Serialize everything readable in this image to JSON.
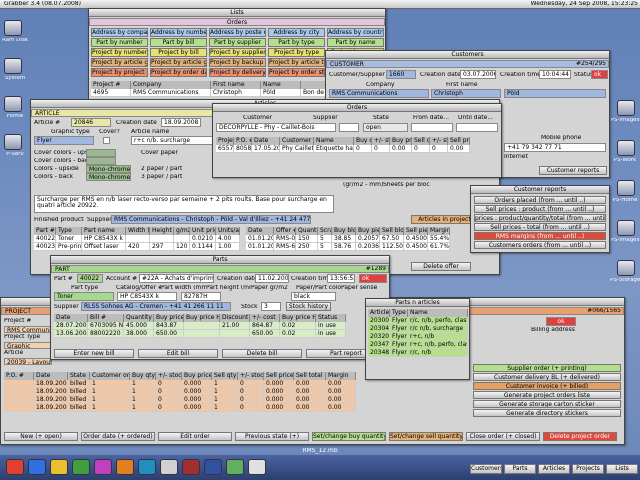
{
  "menubar": {
    "app": "Grabber 3.4 (08.07.2008)",
    "clock": "Wednesday, 24 Sep 2008, 15:23:25"
  },
  "desktop_icons_left": [
    "Ram Disk",
    "System",
    "Home",
    "P-Serv"
  ],
  "desktop_icons_right": [
    "PS-Images",
    "PS-Work",
    "PS-Home",
    "PS-Images",
    "PS-Storage"
  ],
  "lists": {
    "title": "Lists",
    "section": "Orders",
    "buttons": [
      [
        "Address by companyname",
        "Address by number",
        "Address by poste code",
        "Address by city",
        "Address by country"
      ],
      [
        "Part by number",
        "Part by bill",
        "Part by supplier",
        "Part by type",
        "Part by name"
      ],
      [
        "Project by number",
        "Project by bill",
        "Project by supplier",
        "Project by type",
        "Project by name"
      ],
      [
        "Project by article graphic type",
        "Project by article graphic stock",
        "Project by backup media",
        "Project by article type",
        "Project by article name"
      ],
      [
        "Project by project name",
        "Project by order date",
        "Project by delivery date",
        "Project by order state",
        "Project by invoice"
      ]
    ],
    "header": [
      "Project #",
      "Company",
      "First name",
      "Name",
      ""
    ],
    "rows": [
      [
        "4695",
        "RMS Communications",
        "Christoph",
        "Pöld",
        "Bon de rabais CHF 100.00"
      ]
    ]
  },
  "customers": {
    "title": "Customers",
    "section": "CUSTOMER",
    "record": "#254/295",
    "id_label": "Customer/Supplier #",
    "id": "1660",
    "cdate_label": "Creation date",
    "cdate": "03.07.2006",
    "ctime_label": "Creation time",
    "ctime": "10:04:44",
    "status_label": "Status",
    "status": "ok",
    "company_label": "Company",
    "first_label": "First name",
    "company": "RMS Communications",
    "first": "Christoph",
    "name": "Pöld",
    "mobile_label": "Mobile phone",
    "mobile": "+41 79 342 77 71",
    "internet_label": "Internet",
    "reports": "Customer reports"
  },
  "articles": {
    "title": "Articles",
    "section": "ARTICLE",
    "id_label": "Article #",
    "id": "20846",
    "cdate_label": "Creation date",
    "cdate": "18.09.2008",
    "gtype_label": "Graphic type",
    "cover_label": "Cover?",
    "name_label": "Article name",
    "gtype": "Flyer",
    "name": "r+c n/b. surcharge",
    "cc_up": "Cover colors - upside",
    "cc_back": "Cover colors - back",
    "c_up": "Colors - upside",
    "c_back": "Colors - back",
    "mono1": "Mono-chrome",
    "mono2": "Mono-chrome",
    "cover_paper": "Cover paper",
    "paper2": "2 paper / part",
    "paper3": "3 paper / part",
    "grm": "(gr/m2 - mm)",
    "sheets": "Sheets per bloc",
    "note": "Surcharge per RMS en n/b laser recto-verso par semaine + 2 pits roults. Base pour surcharge en quatri article 20922.",
    "finished": "Finished product?",
    "supplier_label": "Supplier",
    "supplier": "RMS Communications - Christoph - Pöld - Val d'Illiez - +41 24 477 58 71",
    "in_projects": "Articles in projects",
    "delete_offer": "Delete offer",
    "header": [
      "Part #",
      "Type",
      "Part name",
      "Width (mm)",
      "Height (mm)",
      "g/m2",
      "Unit price",
      "Units/artic"
    ],
    "rows": [
      [
        "40022",
        "Toner",
        "HP C8543X k",
        "",
        "",
        "",
        "0.0210",
        "4.00"
      ],
      [
        "40023",
        "Pre-print",
        "Offset laser",
        "420",
        "297",
        "120 BL",
        "0.1144",
        "1.00"
      ]
    ],
    "offer_header": [
      "Date",
      "Offer #",
      "Quantity",
      "Scrap",
      "Buy bloc",
      "Buy piece",
      "Sell bloc",
      "Sell piece",
      "Margin"
    ],
    "offer_rows": [
      [
        "01.01.2008",
        "RMS-01",
        "150",
        "5",
        "38.85",
        "0.2057",
        "67.50",
        "0.4500",
        "55.4%"
      ],
      [
        "01.01.2008",
        "RMS-61",
        "250",
        "5",
        "58.76",
        "0.2036",
        "112.50",
        "0.4500",
        "61.7%"
      ]
    ]
  },
  "orders": {
    "title": "Orders",
    "labels": [
      "Customer",
      "Supplier",
      "State",
      "From date...",
      "Until date..."
    ],
    "customer": "DECORPYLLE - Phy - Caillet-Bois",
    "state": "open",
    "header": [
      "Project #",
      "P.O. #",
      "Date",
      "Customer order #",
      "Name",
      "Buy qty",
      "+/- stock",
      "Buy price",
      "Sell qty",
      "+/- stock",
      "Sell price"
    ],
    "rows": [
      [
        "6557",
        "80585",
        "17.05.2008",
        "Phy Caillet-Bois",
        "Etiquette habits",
        "0",
        "0",
        "0.00",
        "0",
        "0",
        "0.00"
      ]
    ]
  },
  "reports": {
    "title": "Customer reports",
    "buttons": [
      "Orders placed (from ... until ..)",
      "Sell prices : product (from ... until ..)",
      "prices : product/quantity/total (from ... until ..)",
      "Sell prices - total (from ... until ..)",
      "RMS margins (from ... until ..)",
      "Customers orders (from ... until ..)"
    ]
  },
  "projects": {
    "title": "Projects",
    "section": "PROJECT",
    "record": "#066/1565",
    "left": [
      "Project #",
      "RMS Communica",
      "Project Type",
      "Graphic",
      "Article",
      "20039 - Layout"
    ],
    "billing": "Billing address",
    "status": "ok",
    "side_buttons": [
      "Supplier order (+ printing)",
      "Customer delivery BL (+ delivered)",
      "Customer invoice (+ billed)",
      "Generate project orders liste",
      "Generate storage carton sticker",
      "Generate directory stickers"
    ],
    "header": [
      "P.O. #",
      "Date",
      "State",
      "Customer order #",
      "Buy qty",
      "+/- stock",
      "Buy price",
      "Sell qty",
      "+/- stock",
      "Sell price",
      "Sell total",
      "Margin"
    ],
    "rows": [
      [
        "",
        "18.09.2008",
        "billed",
        "1",
        "1",
        "0",
        "0.000",
        "1",
        "0",
        "0.000",
        "0.00",
        "0.00"
      ],
      [
        "",
        "18.09.2008",
        "billed",
        "1",
        "1",
        "0",
        "0.000",
        "1",
        "0",
        "0.000",
        "0.00",
        "0.00"
      ],
      [
        "",
        "18.09.2008",
        "billed",
        "1",
        "1",
        "0",
        "0.000",
        "1",
        "0",
        "0.000",
        "0.00",
        "0.00"
      ],
      [
        "",
        "18.09.2008",
        "billed",
        "1",
        "1",
        "0",
        "0.000",
        "1",
        "0",
        "0.000",
        "0.00",
        "0.00"
      ]
    ],
    "bottom_buttons": [
      "New (+ open)",
      "Order date (+ ordered)",
      "Edit order",
      "Previous state (+)",
      "Set/change buy quantity",
      "Set/change sell quantity",
      "Close order (+ closed)",
      "Delete project order"
    ]
  },
  "parts": {
    "title": "Parts",
    "section": "PART",
    "record": "#1289",
    "id_label": "Part #",
    "id": "40022",
    "account_label": "Account #",
    "account": "#22A - Achats d'imprimés, pap.",
    "cdate_label": "Creation date",
    "cdate": "11.02.2000",
    "ctime_label": "Creation time",
    "ctime": "13:56:53",
    "status_label": "Status",
    "status": "ok",
    "labels2": [
      "Part type",
      "Catalog/Offer #",
      "Part width (mm)",
      "Part height (mm)",
      "Paper gr/m2",
      "Paper/Part color",
      "Paper sense"
    ],
    "type": "Toner",
    "name": "HP C8543X k",
    "catalog": "82787H",
    "color": "black",
    "supplier_label": "Supplier",
    "supplier": "RLSS Sohnes AG - Cremen - +41 41 266 11 11",
    "stock_label": "Stock",
    "stock": "3",
    "stock_history": "Stock history",
    "header": [
      "Date",
      "Bill #",
      "Quantity",
      "Buy price",
      "Buy price HT",
      "Discount",
      "+/- cost",
      "Buy price HT",
      "Status"
    ],
    "rows": [
      [
        "28.07.2008",
        "6703095 N",
        "45.000",
        "843.87",
        "",
        "21.00",
        "864.87",
        "0.02",
        "in use"
      ],
      [
        "13.06.2008",
        "88002220",
        "38.000",
        "650.00",
        "",
        "",
        "650.00",
        "0.02",
        "in use"
      ]
    ],
    "buttons": [
      "Enter new bill",
      "Edit bill",
      "Delete bill",
      "Part report"
    ]
  },
  "parts_articles": {
    "title": "Parts n articles",
    "header": [
      "Article #",
      "Type",
      "Name"
    ],
    "rows": [
      [
        "20300",
        "Flyer",
        "r/c, n/b, perfo, classeur"
      ],
      [
        "20304",
        "Flyer",
        "r/c n/b, surcharge"
      ],
      [
        "20320",
        "Flyer",
        "r+c, n/b"
      ],
      [
        "20347",
        "Flyer",
        "r+c, n/b, perfo, classeur"
      ],
      [
        "20348",
        "Flyer",
        "r/c, n/b"
      ]
    ]
  },
  "taskbar": {
    "file": "RMS_12.mb",
    "tabs": [
      "Customers",
      "Parts",
      "Articles",
      "Projects",
      "Lists"
    ]
  }
}
